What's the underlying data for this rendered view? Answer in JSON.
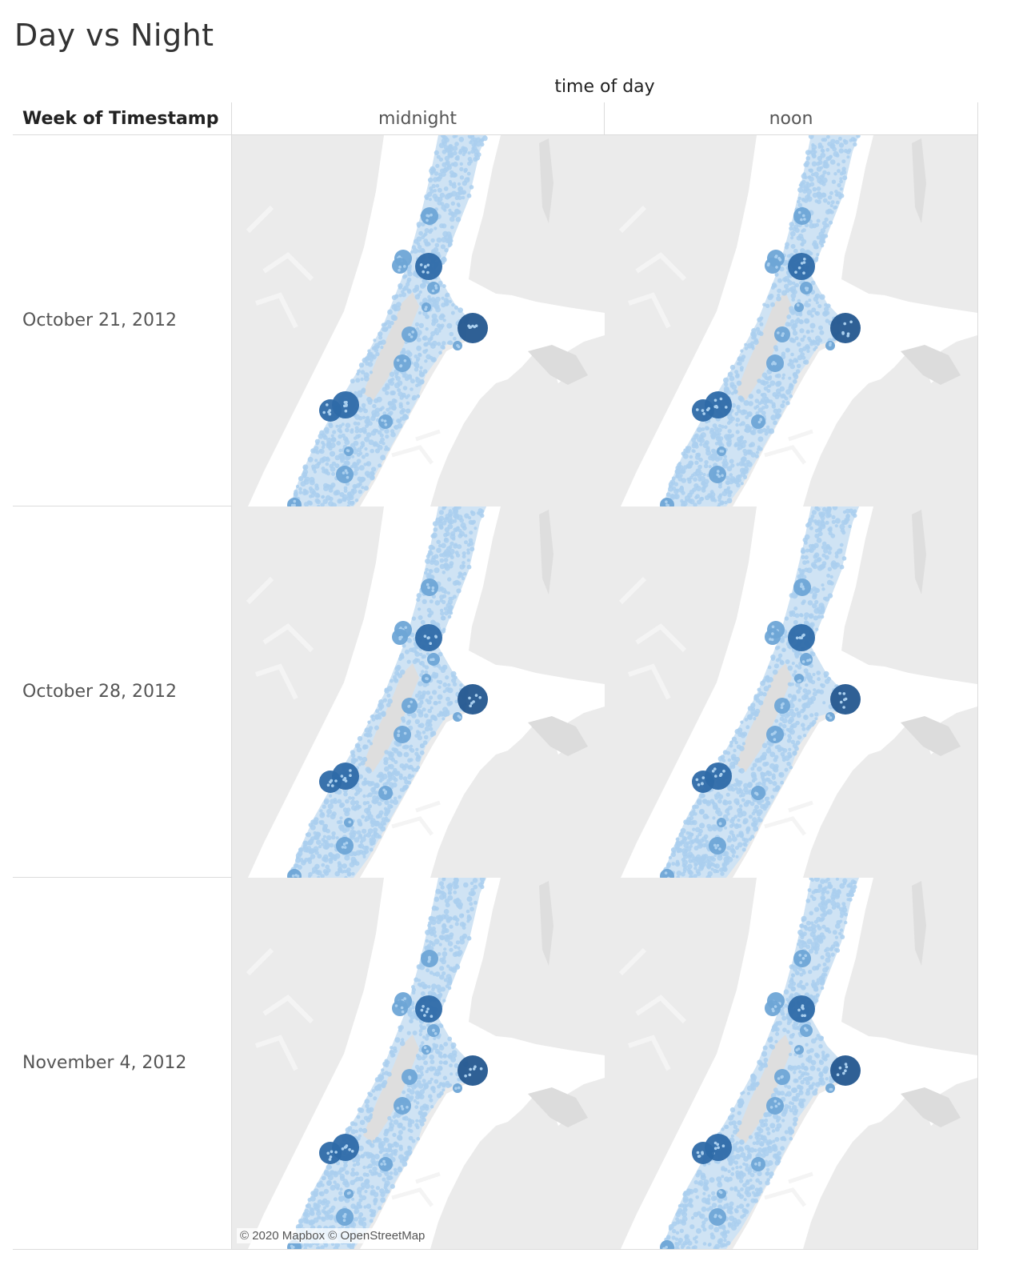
{
  "title": "Day vs Night",
  "column_field": "time of day",
  "row_field": "Week of Timestamp",
  "columns": [
    "midnight",
    "noon"
  ],
  "rows": [
    "October 21, 2012",
    "October 28, 2012",
    "November 4, 2012"
  ],
  "attribution": "© 2020 Mapbox © OpenStreetMap",
  "colors": {
    "land": "#ebebeb",
    "water": "#ffffff",
    "park": "#dedede",
    "dot_light": "#aacfee",
    "dot_mid": "#6ea5d6",
    "dot_dark": "#2e6aa8",
    "dot_darkest": "#24578f"
  }
}
